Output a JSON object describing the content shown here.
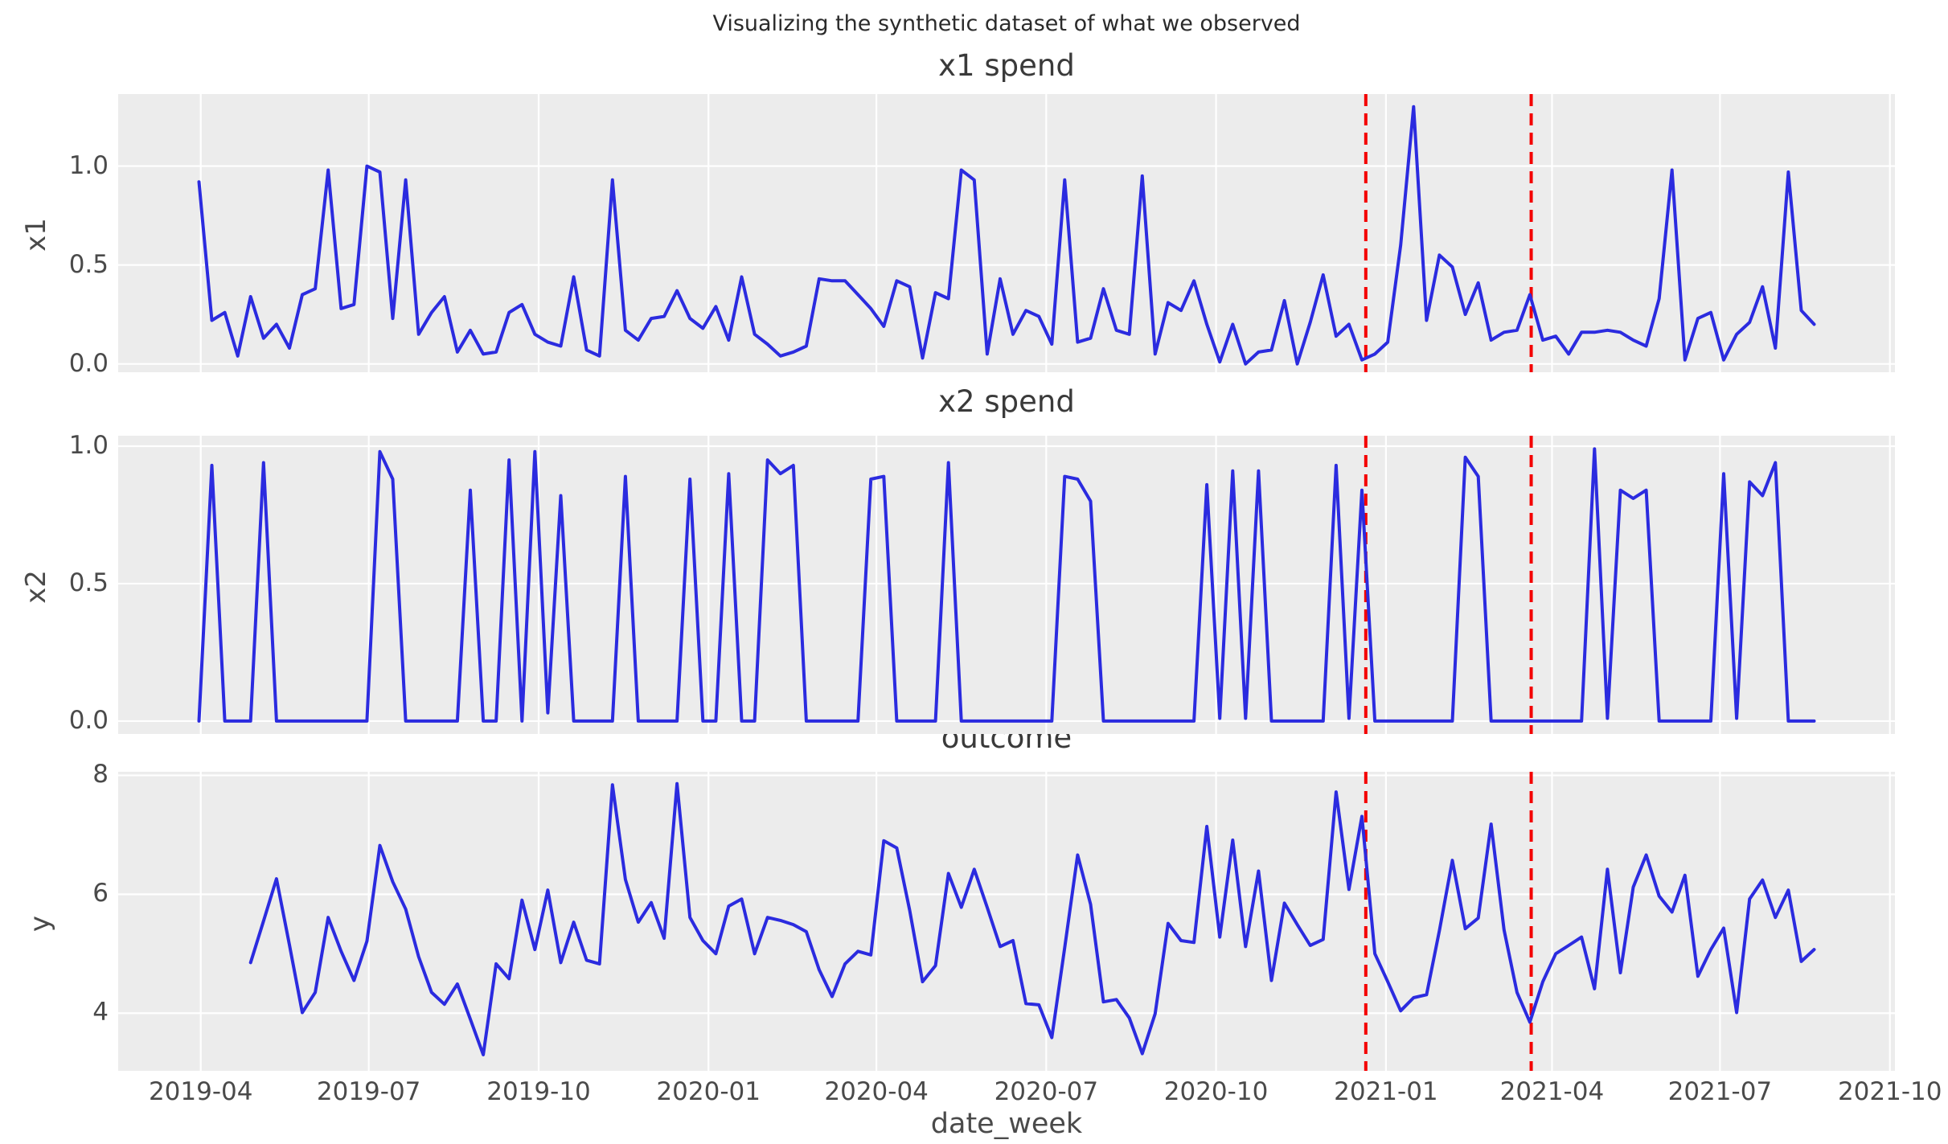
{
  "figure": {
    "suptitle": "Visualizing the synthetic dataset of what we observed",
    "xlabel": "date_week",
    "colors": {
      "line": "#2b2bdf",
      "event_line": "#f40000",
      "plot_bg": "#ececec",
      "grid": "#ffffff",
      "tick_text": "#4a4a4a",
      "title_text": "#3a3a3a"
    },
    "x_axis": {
      "tick_labels": [
        "2019-04",
        "2019-07",
        "2019-10",
        "2020-01",
        "2020-04",
        "2020-07",
        "2020-10",
        "2021-01",
        "2021-04",
        "2021-07",
        "2021-10"
      ],
      "tick_weeks": [
        0.14,
        13.14,
        26.29,
        39.43,
        52.43,
        65.57,
        78.71,
        91.86,
        104.71,
        117.71,
        130.86
      ],
      "xlim_weeks": [
        -6.25,
        131.25
      ],
      "week_start_date": "2019-03-31",
      "weeks_total": 126
    },
    "event_lines": {
      "weeks": [
        90.3,
        103.1
      ],
      "style": "dashed"
    }
  },
  "chart_data": [
    {
      "type": "line",
      "title": "x1 spend",
      "ylabel": "x1",
      "x_start_week": 0,
      "ylim": [
        -0.042,
        1.364
      ],
      "yticks": [
        {
          "v": 0.0,
          "label": "0.0"
        },
        {
          "v": 0.5,
          "label": "0.5"
        },
        {
          "v": 1.0,
          "label": "1.0"
        }
      ],
      "values": [
        0.92,
        0.22,
        0.26,
        0.04,
        0.34,
        0.13,
        0.2,
        0.08,
        0.35,
        0.38,
        0.98,
        0.28,
        0.3,
        1.0,
        0.97,
        0.23,
        0.93,
        0.15,
        0.26,
        0.34,
        0.06,
        0.17,
        0.05,
        0.06,
        0.26,
        0.3,
        0.15,
        0.11,
        0.09,
        0.44,
        0.07,
        0.04,
        0.93,
        0.17,
        0.12,
        0.23,
        0.24,
        0.37,
        0.23,
        0.18,
        0.29,
        0.12,
        0.44,
        0.15,
        0.1,
        0.04,
        0.06,
        0.09,
        0.43,
        0.42,
        0.42,
        0.35,
        0.28,
        0.19,
        0.42,
        0.39,
        0.03,
        0.36,
        0.33,
        0.98,
        0.93,
        0.05,
        0.43,
        0.15,
        0.27,
        0.24,
        0.1,
        0.93,
        0.11,
        0.13,
        0.38,
        0.17,
        0.15,
        0.95,
        0.05,
        0.31,
        0.27,
        0.42,
        0.2,
        0.01,
        0.2,
        0.0,
        0.06,
        0.07,
        0.32,
        0.0,
        0.21,
        0.45,
        0.14,
        0.2,
        0.02,
        0.05,
        0.11,
        0.6,
        1.3,
        0.22,
        0.55,
        0.49,
        0.25,
        0.41,
        0.12,
        0.16,
        0.17,
        0.35,
        0.12,
        0.14,
        0.05,
        0.16,
        0.16,
        0.17,
        0.16,
        0.12,
        0.09,
        0.33,
        0.98,
        0.02,
        0.23,
        0.26,
        0.02,
        0.15,
        0.21,
        0.39,
        0.08,
        0.97,
        0.27,
        0.2
      ]
    },
    {
      "type": "line",
      "title": "x2 spend",
      "ylabel": "x2",
      "x_start_week": 0,
      "ylim": [
        -0.047,
        1.038
      ],
      "yticks": [
        {
          "v": 0.0,
          "label": "0.0"
        },
        {
          "v": 0.5,
          "label": "0.5"
        },
        {
          "v": 1.0,
          "label": "1.0"
        }
      ],
      "values": [
        0,
        0.93,
        0,
        0,
        0,
        0.94,
        0,
        0,
        0,
        0,
        0,
        0,
        0,
        0,
        0.98,
        0.88,
        0,
        0,
        0,
        0,
        0,
        0.84,
        0,
        0,
        0.95,
        0,
        0.98,
        0.03,
        0.82,
        0,
        0,
        0,
        0,
        0.89,
        0,
        0,
        0,
        0,
        0.88,
        0,
        0,
        0.9,
        0,
        0,
        0.95,
        0.9,
        0.93,
        0,
        0,
        0,
        0,
        0,
        0.88,
        0.89,
        0,
        0,
        0,
        0,
        0.94,
        0,
        0,
        0,
        0,
        0,
        0,
        0,
        0,
        0.89,
        0.88,
        0.8,
        0,
        0,
        0,
        0,
        0,
        0,
        0,
        0,
        0.86,
        0.01,
        0.91,
        0.01,
        0.91,
        0,
        0,
        0,
        0,
        0,
        0.93,
        0.01,
        0.84,
        0,
        0,
        0,
        0,
        0,
        0,
        0,
        0.96,
        0.89,
        0,
        0,
        0,
        0,
        0,
        0,
        0,
        0,
        0.99,
        0.01,
        0.84,
        0.81,
        0.84,
        0,
        0,
        0,
        0,
        0,
        0.9,
        0.01,
        0.87,
        0.82,
        0.94,
        0,
        0,
        0
      ]
    },
    {
      "type": "line",
      "title": "outcome",
      "ylabel": "y",
      "x_start_week": 4,
      "ylim": [
        3.03,
        8.06
      ],
      "yticks": [
        {
          "v": 4,
          "label": "4"
        },
        {
          "v": 6,
          "label": "6"
        },
        {
          "v": 8,
          "label": "8"
        }
      ],
      "values": [
        4.85,
        5.55,
        6.26,
        5.15,
        4.01,
        4.35,
        5.61,
        5.04,
        4.55,
        5.21,
        6.82,
        6.21,
        5.75,
        4.95,
        4.35,
        4.15,
        4.49,
        3.9,
        3.3,
        4.83,
        4.58,
        5.9,
        5.07,
        6.07,
        4.85,
        5.53,
        4.89,
        4.83,
        7.84,
        6.25,
        5.53,
        5.86,
        5.26,
        7.86,
        5.61,
        5.22,
        5.0,
        5.8,
        5.92,
        5.0,
        5.61,
        5.56,
        5.49,
        5.37,
        4.73,
        4.28,
        4.83,
        5.04,
        4.98,
        6.9,
        6.78,
        5.73,
        4.53,
        4.8,
        6.35,
        5.78,
        6.42,
        5.78,
        5.12,
        5.22,
        4.16,
        4.14,
        3.59,
        5.1,
        6.66,
        5.83,
        4.19,
        4.23,
        3.92,
        3.32,
        3.99,
        5.51,
        5.22,
        5.19,
        7.14,
        5.28,
        6.91,
        5.12,
        6.39,
        4.55,
        5.85,
        5.49,
        5.14,
        5.24,
        7.72,
        6.08,
        7.31,
        5.0,
        4.53,
        4.04,
        4.26,
        4.31,
        5.39,
        6.57,
        5.42,
        5.6,
        7.18,
        5.4,
        4.35,
        3.85,
        4.53,
        5.0,
        5.14,
        5.28,
        4.41,
        6.42,
        4.68,
        6.12,
        6.66,
        5.97,
        5.7,
        6.32,
        4.62,
        5.07,
        5.43,
        4.01,
        5.92,
        6.24,
        5.61,
        6.07,
        4.87,
        5.07
      ]
    }
  ]
}
